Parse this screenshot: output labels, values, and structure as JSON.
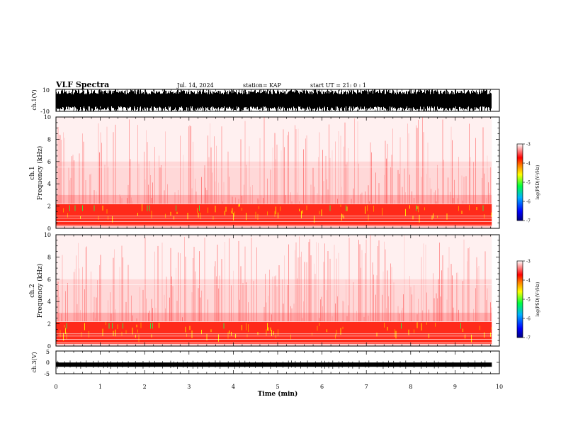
{
  "header": {
    "title": "VLF Spectra",
    "date": "Jul. 14, 2024",
    "station": "station= KAP",
    "start": "start  UT =  21: 0  : 1"
  },
  "chart_data": [
    {
      "type": "line",
      "title": "",
      "ylabel": "ch.1(V)",
      "ylim": [
        -10,
        10
      ],
      "yticks": [
        "10",
        "-10"
      ],
      "description_series": [
        {
          "values_range": [
            -10,
            10
          ]
        }
      ]
    },
    {
      "type": "heatmap",
      "ylabel_line1": "ch.1",
      "ylabel_line2": "Frequency (kHz)",
      "ylim": [
        0,
        10
      ],
      "yticks": [
        "0",
        "2",
        "4",
        "6",
        "8",
        "10"
      ],
      "colorbar": {
        "label": "log(PSD)(V²/Hz)",
        "range": [
          -7,
          -3
        ],
        "ticks": [
          "-3",
          "-4",
          "-5",
          "-6",
          "-7"
        ]
      },
      "intense_band_khz": [
        0.2,
        2.2
      ],
      "data_end_min": 9.83
    },
    {
      "type": "heatmap",
      "ylabel_line1": "ch.2",
      "ylabel_line2": "Frequency (kHz)",
      "ylim": [
        0,
        10
      ],
      "yticks": [
        "0",
        "2",
        "4",
        "6",
        "8",
        "10"
      ],
      "colorbar": {
        "label": "log(PSD)(V²/Hz)",
        "range": [
          -7,
          -3
        ],
        "ticks": [
          "-3",
          "-4",
          "-5",
          "-6",
          "-7"
        ]
      },
      "intense_band_khz": [
        0.2,
        2.2
      ],
      "data_end_min": 9.83
    },
    {
      "type": "line",
      "ylabel": "ch.3(V)",
      "ylim": [
        -5,
        5
      ],
      "yticks": [
        "5",
        "0",
        "-5"
      ],
      "level": -1,
      "xlabel": "Time (min)",
      "xlim": [
        0,
        10
      ],
      "xticks": [
        "0",
        "1",
        "2",
        "3",
        "4",
        "5",
        "6",
        "7",
        "8",
        "9",
        "10"
      ]
    }
  ]
}
